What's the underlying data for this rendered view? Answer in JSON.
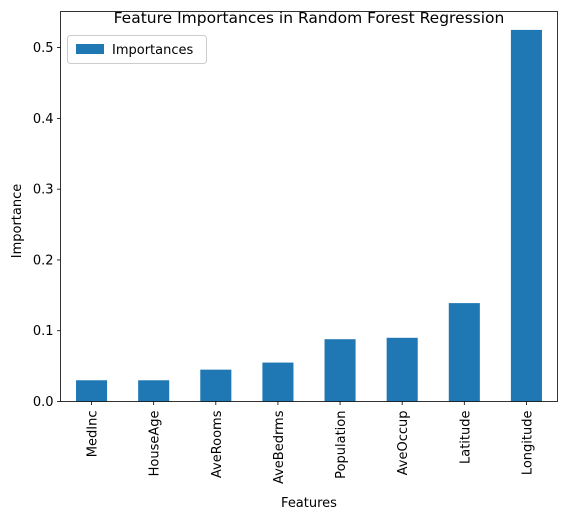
{
  "chart_data": {
    "type": "bar",
    "title": "Feature Importances in Random Forest Regression",
    "xlabel": "Features",
    "ylabel": "Importance",
    "categories": [
      "MedInc",
      "HouseAge",
      "AveRooms",
      "AveBedrms",
      "Population",
      "AveOccup",
      "Latitude",
      "Longitude"
    ],
    "series": [
      {
        "name": "Importances",
        "values": [
          0.03,
          0.03,
          0.045,
          0.055,
          0.088,
          0.09,
          0.139,
          0.525
        ],
        "color": "#1f77b4"
      }
    ],
    "ylim": [
      0,
      0.551
    ],
    "yticks": [
      0.0,
      0.1,
      0.2,
      0.3,
      0.4,
      0.5
    ],
    "ytick_labels": [
      "0.0",
      "0.1",
      "0.2",
      "0.3",
      "0.4",
      "0.5"
    ],
    "grid": false,
    "legend_position": "top-left"
  }
}
